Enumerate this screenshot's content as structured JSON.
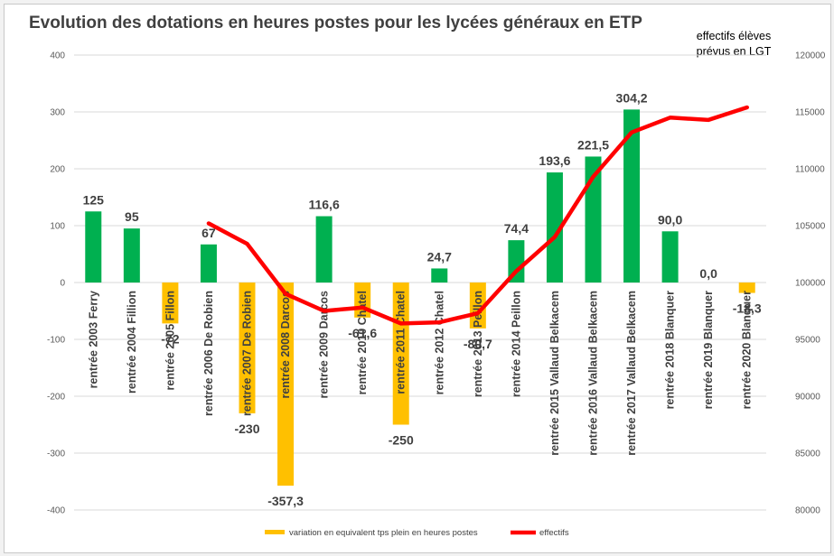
{
  "chart_data": {
    "type": "bar",
    "title": "Evolution des dotations en heures postes pour les lycées généraux en ETP",
    "y2label_lines": [
      "effectifs élèves",
      "prévus en LGT"
    ],
    "ylim": [
      -400,
      400
    ],
    "yticks": [
      -400,
      -300,
      -200,
      -100,
      0,
      100,
      200,
      300,
      400
    ],
    "y2lim": [
      80000,
      120000
    ],
    "y2ticks": [
      80000,
      85000,
      90000,
      95000,
      100000,
      105000,
      110000,
      115000,
      120000
    ],
    "grid": true,
    "legend_position": "bottom",
    "categories": [
      "rentrée 2003 Ferry",
      "rentrée 2004 Fillion",
      "rentrée 2005 Fillon",
      "rentrée 2006 De Robien",
      "rentrée 2007 De Robien",
      "rentrée 2008 Darcos",
      "rentrée 2009 Darcos",
      "rentrée 2010 Chatel",
      "rentrée 2011 Chatel",
      "rentrée 2012 Chatel",
      "rentrée 2013 Peillon",
      "rentrée 2014 Peillon",
      "rentrée 2015 Vallaud Belkacem",
      "rentrée 2016 Vallaud Belkacem",
      "rentrée 2017 Vallaud Belkacem",
      "rentrée 2018 Blanquer",
      "rentrée 2019 Blanquer",
      "rentrée 2020 Blanquer"
    ],
    "series": [
      {
        "name": "variation en equivalent tps plein en heures postes",
        "type": "bar",
        "axis": "left",
        "values": [
          125,
          95,
          -72,
          67,
          -230,
          -357.3,
          116.6,
          -61.6,
          -250,
          24.7,
          -80.7,
          74.4,
          193.6,
          221.5,
          304.2,
          90.0,
          0.0,
          -18.3
        ],
        "labels": [
          "125",
          "95",
          "-72",
          "67",
          "-230",
          "-357,3",
          "116,6",
          "-61,6",
          "-250",
          "24,7",
          "-80,7",
          "74,4",
          "193,6",
          "221,5",
          "304,2",
          "90,0",
          "0,0",
          "-18,3"
        ],
        "positive_color": "#00b050",
        "negative_color": "#ffc000"
      },
      {
        "name": "effectifs",
        "type": "line",
        "axis": "right",
        "color": "#ff0000",
        "values": [
          null,
          null,
          null,
          105200,
          103400,
          99000,
          97500,
          97800,
          96400,
          96500,
          97300,
          101000,
          104000,
          109300,
          113200,
          114500,
          114300,
          115400
        ]
      }
    ]
  }
}
